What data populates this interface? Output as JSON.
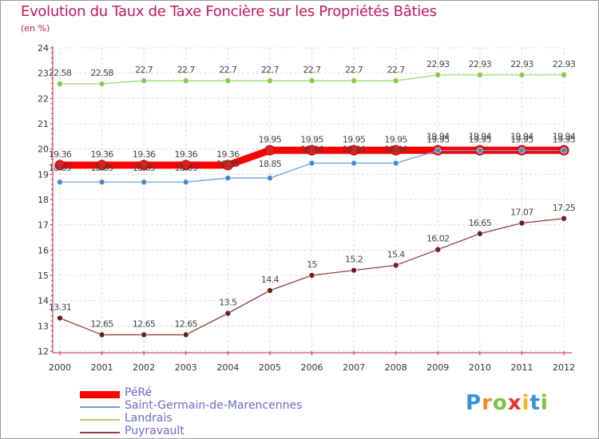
{
  "title": "Evolution du Taux de Taxe Foncière sur les Propriétés Bâties",
  "subtitle": "(en %)",
  "logo": {
    "text": "Proxiti",
    "letters": [
      "P",
      "r",
      "o",
      "x",
      "i",
      "t",
      "i"
    ],
    "colors": [
      "#3b8fd8",
      "#f28c28",
      "#7cc243",
      "#e8322d",
      "#f2b822",
      "#3b8fd8",
      "#7cc243"
    ]
  },
  "chart_data": {
    "type": "line",
    "title": "Evolution du Taux de Taxe Foncière sur les Propriétés Bâties",
    "ylabel": "(en %)",
    "xlabel": "",
    "x": [
      "2000",
      "2001",
      "2002",
      "2003",
      "2004",
      "2005",
      "2006",
      "2007",
      "2008",
      "2009",
      "2010",
      "2011",
      "2012"
    ],
    "ylim": [
      12,
      24
    ],
    "yticks": [
      "12",
      "13",
      "14",
      "15",
      "16",
      "17",
      "18",
      "19",
      "20",
      "21",
      "22",
      "23",
      "24"
    ],
    "grid": true,
    "legend_position": "bottom-left",
    "series": [
      {
        "name": "PéRé",
        "color": "#ff0000",
        "marker": "#e02020",
        "width": "thick",
        "values": [
          19.36,
          19.36,
          19.36,
          19.36,
          19.36,
          19.95,
          19.95,
          19.95,
          19.95,
          19.95,
          19.95,
          19.95,
          19.95
        ],
        "labels": [
          "19.36",
          "19.36",
          "19.36",
          "19.36",
          "19.36",
          "19.95",
          "19.95",
          "19.95",
          "19.95",
          "19.95",
          "19.95",
          "19.95",
          "19.95"
        ]
      },
      {
        "name": "Saint-Germain-de-Marencennes",
        "color": "#6a9fd4",
        "marker": "#4a86c8",
        "width": "thin",
        "values": [
          18.69,
          18.69,
          18.69,
          18.69,
          18.85,
          18.85,
          19.44,
          19.44,
          19.44,
          19.94,
          19.94,
          19.94,
          19.94
        ],
        "labels": [
          "18.69",
          "18.69",
          "18.69",
          "18.69",
          "18.85",
          "18.85",
          "19.44",
          "19.44",
          "19.44",
          "19.94",
          "19.94",
          "19.94",
          "19.94"
        ]
      },
      {
        "name": "Landrais",
        "color": "#9fd870",
        "marker": "#7fcc4a",
        "width": "thin",
        "values": [
          22.58,
          22.58,
          22.7,
          22.7,
          22.7,
          22.7,
          22.7,
          22.7,
          22.7,
          22.93,
          22.93,
          22.93,
          22.93
        ],
        "labels": [
          "22.58",
          "22.58",
          "22.7",
          "22.7",
          "22.7",
          "22.7",
          "22.7",
          "22.7",
          "22.7",
          "22.93",
          "22.93",
          "22.93",
          "22.93"
        ]
      },
      {
        "name": "Puyravault",
        "color": "#8a4040",
        "marker": "#6b1f1f",
        "width": "thin",
        "values": [
          13.31,
          12.65,
          12.65,
          12.65,
          13.5,
          14.4,
          15,
          15.2,
          15.4,
          16.02,
          16.65,
          17.07,
          17.25
        ],
        "labels": [
          "13.31",
          "12.65",
          "12.65",
          "12.65",
          "13.5",
          "14.4",
          "15",
          "15.2",
          "15.4",
          "16.02",
          "16.65",
          "17.07",
          "17.25"
        ]
      }
    ]
  }
}
